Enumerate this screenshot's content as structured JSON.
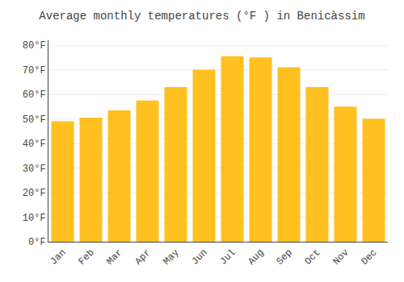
{
  "chart_data": {
    "type": "bar",
    "title": "Average monthly temperatures (°F ) in Benicàssim",
    "categories": [
      "Jan",
      "Feb",
      "Mar",
      "Apr",
      "May",
      "Jun",
      "Jul",
      "Aug",
      "Sep",
      "Oct",
      "Nov",
      "Dec"
    ],
    "values": [
      49,
      50.5,
      53.5,
      57.5,
      63,
      70,
      75.5,
      75,
      71,
      63,
      55,
      50
    ],
    "color": "#FFC020",
    "ylim": [
      0,
      82
    ],
    "yticks": [
      {
        "value": 0,
        "label": "0°F"
      },
      {
        "value": 10,
        "label": "10°F"
      },
      {
        "value": 20,
        "label": "20°F"
      },
      {
        "value": 30,
        "label": "30°F"
      },
      {
        "value": 40,
        "label": "40°F"
      },
      {
        "value": 50,
        "label": "50°F"
      },
      {
        "value": 60,
        "label": "60°F"
      },
      {
        "value": 70,
        "label": "70°F"
      },
      {
        "value": 80,
        "label": "80°F"
      }
    ],
    "grid": true
  }
}
